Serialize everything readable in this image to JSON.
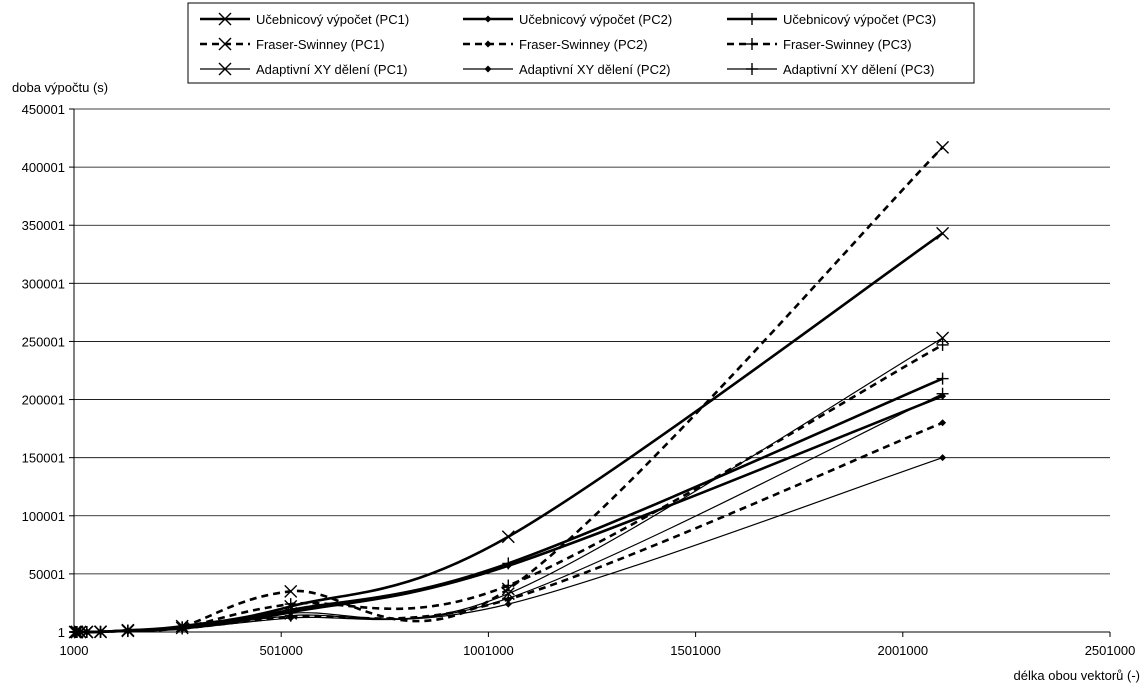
{
  "chart_data": {
    "type": "line",
    "title": "",
    "xlabel": "délka obou vektorů (-)",
    "ylabel": "doba výpočtu (s)",
    "xlim": [
      1000,
      2501000
    ],
    "ylim": [
      1,
      450001
    ],
    "x_ticks": [
      "1000",
      "501000",
      "1001000",
      "1501000",
      "2001000",
      "2501000"
    ],
    "y_ticks": [
      "1",
      "50001",
      "100001",
      "150001",
      "200001",
      "250001",
      "300001",
      "350001",
      "400001",
      "450001"
    ],
    "grid": "horizontal",
    "legend_position": "top-center",
    "series": [
      {
        "name": "Učebnicový výpočet (PC1)",
        "line": "thick",
        "marker": "x",
        "x": [
          4000,
          8000,
          16000,
          32000,
          65000,
          131000,
          262000,
          524000,
          1049000,
          2097000
        ],
        "y": [
          1,
          1,
          2,
          20,
          200,
          1500,
          5000,
          22000,
          82000,
          343000
        ]
      },
      {
        "name": "Učebnicový výpočet (PC2)",
        "line": "thick",
        "marker": "diamond",
        "x": [
          4000,
          8000,
          16000,
          32000,
          65000,
          131000,
          262000,
          524000,
          1049000,
          2097000
        ],
        "y": [
          1,
          1,
          2,
          15,
          150,
          1000,
          3500,
          17000,
          57000,
          203000
        ]
      },
      {
        "name": "Učebnicový výpočet (PC3)",
        "line": "thick",
        "marker": "plus",
        "x": [
          4000,
          8000,
          16000,
          32000,
          65000,
          131000,
          262000,
          524000,
          1049000,
          2097000
        ],
        "y": [
          1,
          1,
          2,
          18,
          170,
          1200,
          4000,
          19000,
          59000,
          218000
        ]
      },
      {
        "name": "Fraser-Swinney (PC1)",
        "line": "dashed",
        "marker": "x",
        "x": [
          4000,
          8000,
          16000,
          32000,
          65000,
          131000,
          262000,
          524000,
          1049000,
          2097000
        ],
        "y": [
          1,
          1,
          2,
          20,
          200,
          1500,
          5000,
          35000,
          37000,
          417000
        ]
      },
      {
        "name": "Fraser-Swinney (PC2)",
        "line": "dashed",
        "marker": "diamond",
        "x": [
          4000,
          8000,
          16000,
          32000,
          65000,
          131000,
          262000,
          524000,
          1049000,
          2097000
        ],
        "y": [
          1,
          1,
          2,
          15,
          150,
          1000,
          3000,
          13000,
          28000,
          180000
        ]
      },
      {
        "name": "Fraser-Swinney (PC3)",
        "line": "dashed",
        "marker": "plus",
        "x": [
          4000,
          8000,
          16000,
          32000,
          65000,
          131000,
          262000,
          524000,
          1049000,
          2097000
        ],
        "y": [
          1,
          1,
          2,
          18,
          170,
          1200,
          4000,
          24000,
          40000,
          247000
        ]
      },
      {
        "name": "Adaptivní XY dělení (PC1)",
        "line": "thin",
        "marker": "x",
        "x": [
          4000,
          8000,
          16000,
          32000,
          65000,
          131000,
          262000,
          524000,
          1049000,
          2097000
        ],
        "y": [
          1,
          1,
          2,
          15,
          150,
          1000,
          3500,
          16000,
          33000,
          253000
        ]
      },
      {
        "name": "Adaptivní XY dělení (PC2)",
        "line": "thin",
        "marker": "diamond",
        "x": [
          4000,
          8000,
          16000,
          32000,
          65000,
          131000,
          262000,
          524000,
          1049000,
          2097000
        ],
        "y": [
          1,
          1,
          2,
          10,
          100,
          700,
          2500,
          12000,
          24000,
          150000
        ]
      },
      {
        "name": "Adaptivní XY dělení (PC3)",
        "line": "thin",
        "marker": "plus",
        "x": [
          4000,
          8000,
          16000,
          32000,
          65000,
          131000,
          262000,
          524000,
          1049000,
          2097000
        ],
        "y": [
          1,
          1,
          2,
          12,
          120,
          800,
          3000,
          14000,
          29000,
          205000
        ]
      }
    ]
  }
}
